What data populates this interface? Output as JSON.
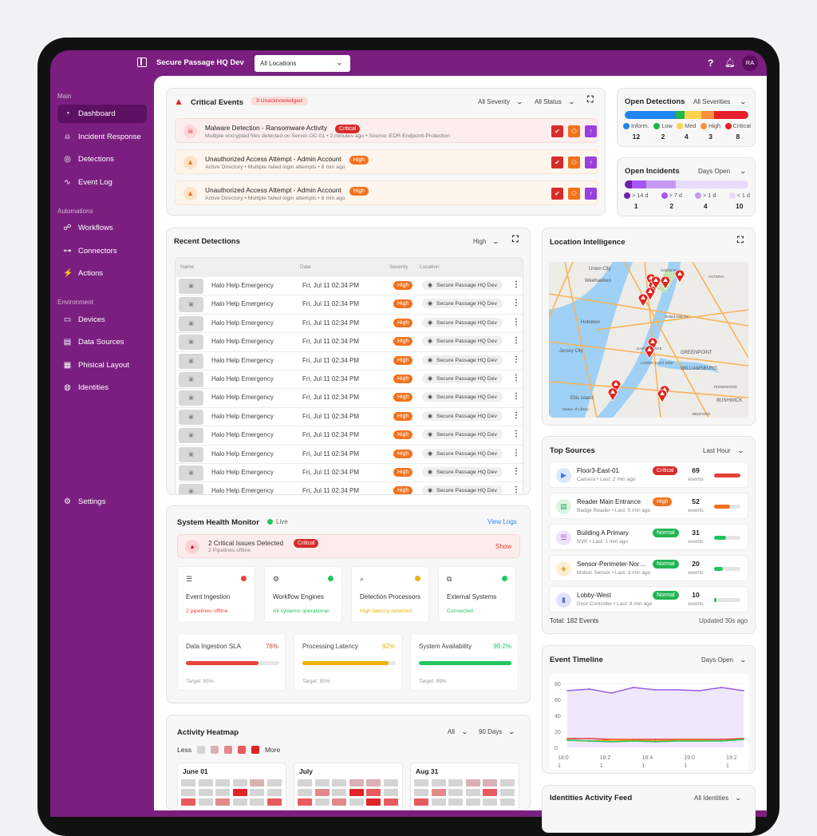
{
  "topbar": {
    "title": "Secure Passage HQ Dev",
    "location_select": "All Locations",
    "help": "?",
    "avatar": "RA"
  },
  "sidebar": {
    "sections": [
      {
        "label": "Main",
        "items": [
          {
            "label": "Dashboard",
            "icon": "gauge-icon",
            "glyph": "◔",
            "active": true
          },
          {
            "label": "Incident Response",
            "icon": "alarm-icon",
            "glyph": "⍝"
          },
          {
            "label": "Detections",
            "icon": "target-icon",
            "glyph": "◎"
          },
          {
            "label": "Event Log",
            "icon": "pulse-icon",
            "glyph": "∿"
          }
        ]
      },
      {
        "label": "Automations",
        "items": [
          {
            "label": "Workflows",
            "icon": "workflow-icon",
            "glyph": "☍"
          },
          {
            "label": "Connectors",
            "icon": "connectors-icon",
            "glyph": "⊶"
          },
          {
            "label": "Actions",
            "icon": "lightning-icon",
            "glyph": "⚡"
          }
        ]
      },
      {
        "label": "Environment",
        "items": [
          {
            "label": "Devices",
            "icon": "camera-icon",
            "glyph": "▭"
          },
          {
            "label": "Data Sources",
            "icon": "data-sources-icon",
            "glyph": "▤"
          },
          {
            "label": "Phisical Layout",
            "icon": "layout-icon",
            "glyph": "▦"
          },
          {
            "label": "Identities",
            "icon": "fingerprint-icon",
            "glyph": "◍"
          }
        ]
      }
    ],
    "settings": {
      "label": "Settings",
      "icon": "gear-icon",
      "glyph": "⚙"
    }
  },
  "critical_events": {
    "title": "Critical Events",
    "badge": "3 Unacknowledged",
    "filters": [
      "All Severity",
      "All Status"
    ],
    "items": [
      {
        "title": "Malware Detection - Ransomware Activity",
        "severity": "Critical",
        "subtitle": "Multiple encrypted files detected on Server-DC-01  •  2 minutes ago • Source: EDR-Endpoint-Protection",
        "icon": "skull-icon",
        "glyph": "☠"
      },
      {
        "title": "Unauthorized Access Attempt - Admin Account",
        "severity": "High",
        "subtitle": "Active Directory • Multiple failed login attempts • 8 min ago",
        "icon": "building-icon",
        "glyph": "▲"
      },
      {
        "title": "Unauthorized Access Attempt - Admin Account",
        "severity": "High",
        "subtitle": "Active Directory • Multiple failed login attempts • 8 min ago",
        "icon": "building-icon",
        "glyph": "▲"
      }
    ]
  },
  "open_detections": {
    "title": "Open Detections",
    "filter": "All Severities",
    "items": [
      {
        "label": "Inform.",
        "count": 12,
        "color": "#1f86f0"
      },
      {
        "label": "Low",
        "count": 2,
        "color": "#22b54a"
      },
      {
        "label": "Med",
        "count": 4,
        "color": "#fcd34d"
      },
      {
        "label": "High",
        "count": 3,
        "color": "#f98f3c"
      },
      {
        "label": "Critical",
        "count": 8,
        "color": "#e5202a"
      }
    ]
  },
  "open_incidents": {
    "title": "Open Incidents",
    "filter": "Days Open",
    "items": [
      {
        "label": "> 14 d",
        "count": 1,
        "color": "#6b21a8"
      },
      {
        "label": "> 7 d",
        "count": 2,
        "color": "#a855f7"
      },
      {
        "label": "> 1 d",
        "count": 4,
        "color": "#c49af5"
      },
      {
        "label": "< 1 d",
        "count": 10,
        "color": "#e9dcfb"
      }
    ]
  },
  "recent_detections": {
    "title": "Recent Detections",
    "filter": "High",
    "columns": [
      "Name",
      "Date",
      "Severity",
      "Location"
    ],
    "rows": [
      {
        "name": "Halo Help Emergency",
        "date": "Fri, Jul 11 02:34 PM",
        "severity": "High",
        "location": "Secure Passage HQ Dev"
      },
      {
        "name": "Halo Help Emergency",
        "date": "Fri, Jul 11 02:34 PM",
        "severity": "High",
        "location": "Secure Passage HQ Dev"
      },
      {
        "name": "Halo Help Emergency",
        "date": "Fri, Jul 11 02:34 PM",
        "severity": "High",
        "location": "Secure Passage HQ Dev"
      },
      {
        "name": "Halo Help Emergency",
        "date": "Fri, Jul 11 02:34 PM",
        "severity": "High",
        "location": "Secure Passage HQ Dev"
      },
      {
        "name": "Halo Help Emergency",
        "date": "Fri, Jul 11 02:34 PM",
        "severity": "High",
        "location": "Secure Passage HQ Dev"
      },
      {
        "name": "Halo Help Emergency",
        "date": "Fri, Jul 11 02:34 PM",
        "severity": "High",
        "location": "Secure Passage HQ Dev"
      },
      {
        "name": "Halo Help Emergency",
        "date": "Fri, Jul 11 02:34 PM",
        "severity": "High",
        "location": "Secure Passage HQ Dev"
      },
      {
        "name": "Halo Help Emergency",
        "date": "Fri, Jul 11 02:34 PM",
        "severity": "High",
        "location": "Secure Passage HQ Dev"
      },
      {
        "name": "Halo Help Emergency",
        "date": "Fri, Jul 11 02:34 PM",
        "severity": "High",
        "location": "Secure Passage HQ Dev"
      },
      {
        "name": "Halo Help Emergency",
        "date": "Fri, Jul 11 02:34 PM",
        "severity": "High",
        "location": "Secure Passage HQ Dev"
      },
      {
        "name": "Halo Help Emergency",
        "date": "Fri, Jul 11 02:34 PM",
        "severity": "High",
        "location": "Secure Passage HQ Dev"
      },
      {
        "name": "Halo Help Emergency",
        "date": "Fri, Jul 11 02:34 PM",
        "severity": "High",
        "location": "Secure Passage HQ Dev"
      }
    ]
  },
  "location_intelligence": {
    "title": "Location Intelligence",
    "map_labels": [
      "Union City",
      "Central Park",
      "Weehawken",
      "ASTORIA",
      "Hoboken",
      "United Nations",
      "Jersey City",
      "EAST VILLAGE",
      "GREENPOINT",
      "LOWER EAST SIDE",
      "WILLIAMSBURG",
      "RIDGEWOOD",
      "Ellis Island",
      "Statue of Liberty",
      "BUSHWICK",
      "BEDFORD"
    ]
  },
  "system_health": {
    "title": "System Health Monitor",
    "live": "Live",
    "view_logs": "View Logs",
    "alert": {
      "title": "2 Critical Issues Detected",
      "badge": "Critical",
      "subtitle": "2 Pipelines offline",
      "action": "Show"
    },
    "services": [
      {
        "name": "Event Ingestion",
        "status": "2 pipelines offline",
        "color": "#e5443a",
        "icon": "database-icon",
        "glyph": "☰"
      },
      {
        "name": "Workflow Engines",
        "status": "All systems operational",
        "color": "#22c55e",
        "icon": "gears-icon",
        "glyph": "⚙"
      },
      {
        "name": "Detection Processors",
        "status": "High latency detected",
        "color": "#eab308",
        "icon": "search-icon",
        "glyph": "⌕"
      },
      {
        "name": "External Systems",
        "status": "Connected",
        "color": "#22c55e",
        "icon": "network-icon",
        "glyph": "⧉"
      }
    ],
    "metrics": [
      {
        "name": "Data Ingestion SLA",
        "value": "78%",
        "percent": 78,
        "target": "Target: 95%",
        "color": "#e5443a"
      },
      {
        "name": "Processing Latency",
        "value": "92%",
        "percent": 92,
        "target": "Target: 95%",
        "color": "#eab308"
      },
      {
        "name": "System Availability",
        "value": "99.2%",
        "percent": 99.2,
        "target": "Target: 99%",
        "color": "#22c55e"
      }
    ]
  },
  "top_sources": {
    "title": "Top Sources",
    "filter": "Last Hour",
    "events_label": "events",
    "items": [
      {
        "name": "Floor3-East-01",
        "meta": "Camera • Last: 2 min ago",
        "badge": "Critical",
        "count": "69",
        "fill": 1.0,
        "color": "#e5443a",
        "icon": "camera-icon",
        "glyph": "▶",
        "icon_bg": "#dbe8fd",
        "icon_color": "#2f7ef0"
      },
      {
        "name": "Reader Main Entrance",
        "meta": "Badge Reader • Last: 5 min ago",
        "badge": "High",
        "count": "52",
        "fill": 0.6,
        "color": "#f2721e",
        "icon": "badge-reader-icon",
        "glyph": "▤",
        "icon_bg": "#dcf5e4",
        "icon_color": "#22a55a"
      },
      {
        "name": "Building A Primary",
        "meta": "NVR • Last: 1 min ago",
        "badge": "Normal",
        "count": "31",
        "fill": 0.45,
        "color": "#22c55e",
        "icon": "nvr-icon",
        "glyph": "☰",
        "icon_bg": "#efe3fb",
        "icon_color": "#9b45e4"
      },
      {
        "name": "Sensor-Perimeter-Nor…",
        "meta": "Motion Sensor • Last: 3 min ago",
        "badge": "Normal",
        "count": "20",
        "fill": 0.33,
        "color": "#22c55e",
        "icon": "shield-icon",
        "glyph": "◈",
        "icon_bg": "#fdf0d2",
        "icon_color": "#e29a0b"
      },
      {
        "name": "Lobby-West",
        "meta": "Door Controller • Last: 8 min ago",
        "badge": "Normal",
        "count": "10",
        "fill": 0.1,
        "color": "#22c55e",
        "icon": "door-icon",
        "glyph": "▮",
        "icon_bg": "#e0e4fb",
        "icon_color": "#5b6ee6"
      }
    ],
    "total": "Total: 182 Events",
    "updated": "Updated 30s ago"
  },
  "event_timeline": {
    "title": "Event Timeline",
    "filter": "Days Open"
  },
  "chart_data": {
    "type": "area",
    "ylim": [
      0,
      80
    ],
    "yticks": [
      0,
      20,
      40,
      60,
      80
    ],
    "xticks": [
      "18:0\n1",
      "18:2\n1",
      "18:4\n1",
      "19:0\n1",
      "19:2\n1"
    ],
    "series": [
      {
        "color": "#9b5de5",
        "values": [
          71,
          73,
          68,
          75,
          72,
          72,
          71,
          75,
          71
        ]
      },
      {
        "color": "#e53935",
        "values": [
          11,
          11,
          10,
          10,
          10,
          10,
          10,
          10,
          11
        ]
      },
      {
        "color": "#f59e0b",
        "values": [
          9,
          8,
          9,
          9,
          8,
          9,
          9,
          8,
          10
        ]
      },
      {
        "color": "#22c55e",
        "values": [
          9,
          8,
          7,
          8,
          7,
          8,
          8,
          8,
          10
        ]
      }
    ]
  },
  "activity_heatmap": {
    "title": "Activity Heatmap",
    "filters": [
      "All",
      "90 Days"
    ],
    "less": "Less",
    "more": "More",
    "levels": [
      "#d4d4d4",
      "#d9b0b3",
      "#e3898b",
      "#e85a5e",
      "#e02426"
    ],
    "months": [
      {
        "label": "June 01",
        "cells": [
          0,
          0,
          0,
          0,
          1,
          0,
          0,
          0,
          0,
          4,
          0,
          0,
          3,
          0,
          2,
          0,
          0,
          3
        ]
      },
      {
        "label": "July",
        "cells": [
          0,
          0,
          0,
          1,
          1,
          0,
          0,
          2,
          0,
          4,
          3,
          0,
          3,
          0,
          2,
          0,
          4,
          3
        ]
      },
      {
        "label": "Aug 31",
        "cells": [
          0,
          0,
          0,
          1,
          1,
          0,
          0,
          2,
          0,
          0,
          3,
          0,
          3,
          0,
          0,
          0,
          0,
          0
        ]
      }
    ]
  },
  "identities_feed": {
    "title": "Identities Activity Feed",
    "filter": "All Identities"
  }
}
